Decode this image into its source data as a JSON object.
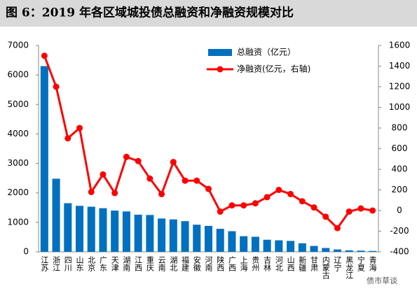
{
  "chart_data": {
    "type": "bar",
    "title": "图 6：2019 年各区域城投债总融资和净融资规模对比",
    "categories": [
      "江苏",
      "浙江",
      "四川",
      "山东",
      "北京",
      "广东",
      "天津",
      "湖南",
      "江西",
      "重庆",
      "云南",
      "湖北",
      "福建",
      "安徽",
      "河南",
      "陕西",
      "广西",
      "上海",
      "贵州",
      "吉林",
      "河北",
      "山西",
      "新疆",
      "甘肃",
      "内蒙古",
      "辽宁",
      "黑龙江",
      "宁夏",
      "青海"
    ],
    "series": [
      {
        "name": "总融资（亿元）",
        "type": "bar",
        "color": "#0070c0",
        "values": [
          6300,
          2480,
          1650,
          1560,
          1530,
          1480,
          1400,
          1370,
          1260,
          1250,
          1130,
          1100,
          1040,
          920,
          880,
          780,
          700,
          530,
          510,
          410,
          390,
          370,
          290,
          200,
          130,
          80,
          50,
          40,
          30
        ]
      },
      {
        "name": "净融资(亿元，右轴)",
        "type": "line",
        "axis": "y2",
        "color": "#ff0000",
        "values": [
          1500,
          1200,
          700,
          800,
          180,
          350,
          170,
          520,
          480,
          310,
          160,
          470,
          290,
          290,
          210,
          -10,
          50,
          50,
          70,
          130,
          200,
          160,
          90,
          30,
          -60,
          -170,
          -10,
          20,
          0
        ]
      }
    ],
    "ylim": [
      0,
      7000
    ],
    "yticks": [
      0,
      1000,
      2000,
      3000,
      4000,
      5000,
      6000,
      7000
    ],
    "y2lim": [
      -400,
      1600
    ],
    "y2ticks": [
      -400,
      -200,
      0,
      200,
      400,
      600,
      800,
      1000,
      1200,
      1400,
      1600
    ],
    "watermark": "债市草谈"
  }
}
